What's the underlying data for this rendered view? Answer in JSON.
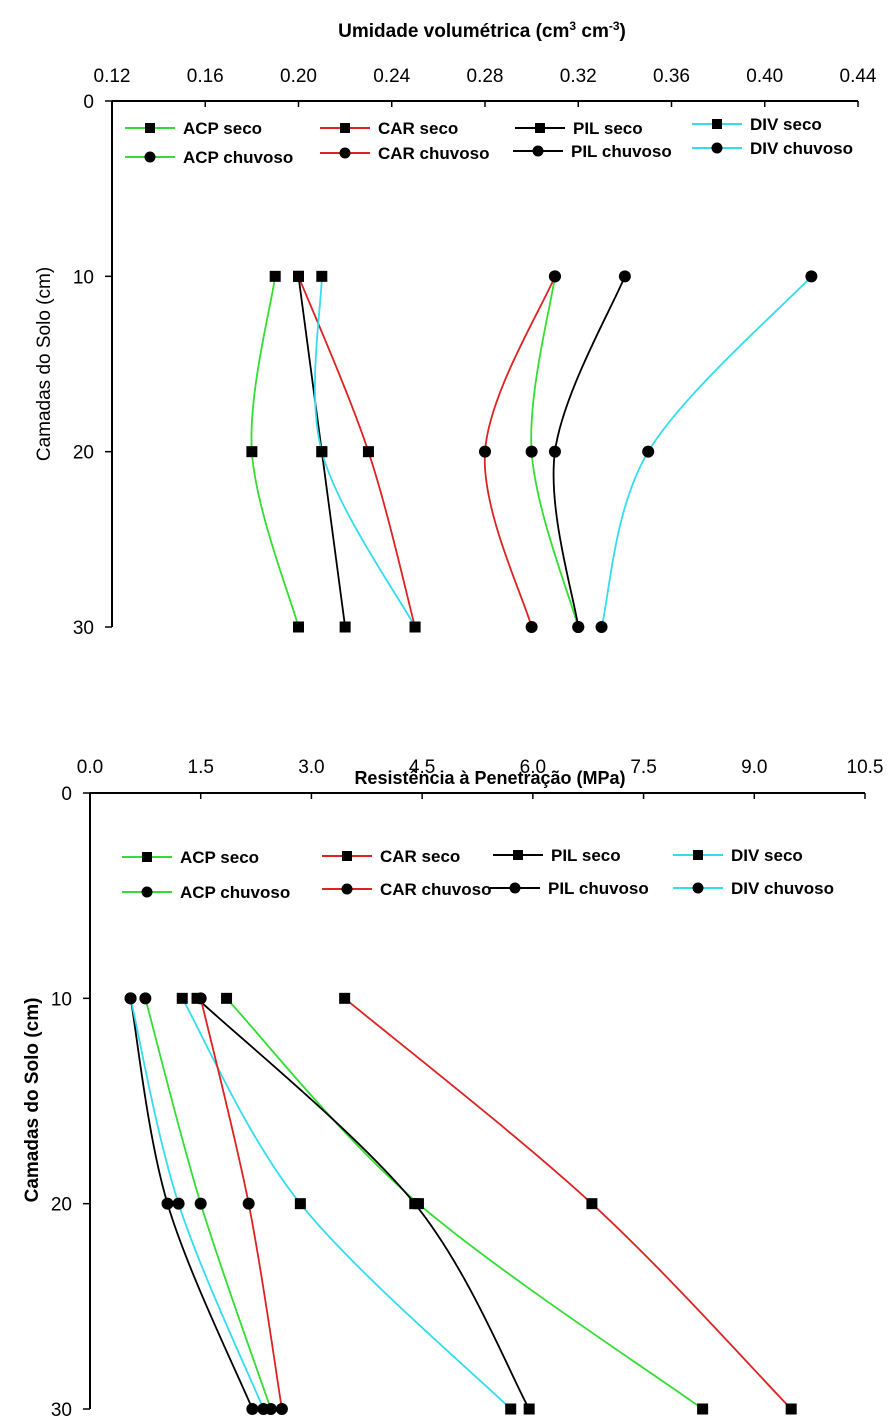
{
  "chart_data": [
    {
      "type": "line",
      "title": "",
      "xlabel": "Umidade volumétrica (cm³ cm⁻³)",
      "xlabel_parts": [
        "Umidade volumétrica (cm",
        "3",
        " cm",
        "-3",
        ")"
      ],
      "ylabel": "Camadas do Solo (cm)",
      "xlim": [
        0.12,
        0.44
      ],
      "ylim": [
        0,
        30
      ],
      "xticks": [
        "0.12",
        "0.16",
        "0.20",
        "0.24",
        "0.28",
        "0.32",
        "0.36",
        "0.40",
        "0.44"
      ],
      "yticks": [
        "0",
        "10",
        "20",
        "30"
      ],
      "grid": false,
      "legend_position": "top",
      "y": [
        10,
        20,
        30
      ],
      "series": [
        {
          "name": "ACP seco",
          "marker": "square",
          "color": "#33dd33",
          "x": [
            0.19,
            0.18,
            0.2
          ]
        },
        {
          "name": "CAR seco",
          "marker": "square",
          "color": "#dd2222",
          "x": [
            0.2,
            0.23,
            0.25
          ]
        },
        {
          "name": "PIL seco",
          "marker": "square",
          "color": "#000000",
          "x": [
            0.2,
            0.21,
            0.22
          ]
        },
        {
          "name": "DIV seco",
          "marker": "square",
          "color": "#33ddee",
          "x": [
            0.21,
            0.21,
            0.25
          ]
        },
        {
          "name": "ACP chuvoso",
          "marker": "circle",
          "color": "#33dd33",
          "x": [
            0.31,
            0.3,
            0.32
          ]
        },
        {
          "name": "CAR chuvoso",
          "marker": "circle",
          "color": "#dd2222",
          "x": [
            0.31,
            0.28,
            0.3
          ]
        },
        {
          "name": "PIL chuvoso",
          "marker": "circle",
          "color": "#000000",
          "x": [
            0.34,
            0.31,
            0.32
          ]
        },
        {
          "name": "DIV chuvoso",
          "marker": "circle",
          "color": "#33ddee",
          "x": [
            0.42,
            0.35,
            0.33
          ]
        }
      ]
    },
    {
      "type": "line",
      "title": "",
      "xlabel": "Resistência à Penetração (MPa)",
      "ylabel": "Camadas do Solo (cm)",
      "xlim": [
        0,
        10.5
      ],
      "ylim": [
        0,
        30
      ],
      "xticks": [
        "0.0",
        "1.5",
        "3.0",
        "4.5",
        "6.0",
        "7.5",
        "9.0",
        "10.5"
      ],
      "yticks": [
        "0",
        "10",
        "20",
        "30"
      ],
      "grid": false,
      "legend_position": "top",
      "y": [
        10,
        20,
        30
      ],
      "series": [
        {
          "name": "ACP seco",
          "marker": "square",
          "color": "#33dd33",
          "x": [
            1.85,
            4.45,
            8.3
          ]
        },
        {
          "name": "CAR seco",
          "marker": "square",
          "color": "#dd2222",
          "x": [
            3.45,
            6.8,
            9.5
          ]
        },
        {
          "name": "PIL seco",
          "marker": "square",
          "color": "#000000",
          "x": [
            1.45,
            4.4,
            5.95
          ]
        },
        {
          "name": "DIV seco",
          "marker": "square",
          "color": "#33ddee",
          "x": [
            1.25,
            2.85,
            5.7
          ]
        },
        {
          "name": "ACP chuvoso",
          "marker": "circle",
          "color": "#33dd33",
          "x": [
            0.75,
            1.5,
            2.45
          ]
        },
        {
          "name": "CAR chuvoso",
          "marker": "circle",
          "color": "#dd2222",
          "x": [
            1.5,
            2.15,
            2.6
          ]
        },
        {
          "name": "PIL chuvoso",
          "marker": "circle",
          "color": "#000000",
          "x": [
            0.55,
            1.05,
            2.2
          ]
        },
        {
          "name": "DIV chuvoso",
          "marker": "circle",
          "color": "#33ddee",
          "x": [
            0.55,
            1.2,
            2.35
          ]
        }
      ]
    }
  ]
}
